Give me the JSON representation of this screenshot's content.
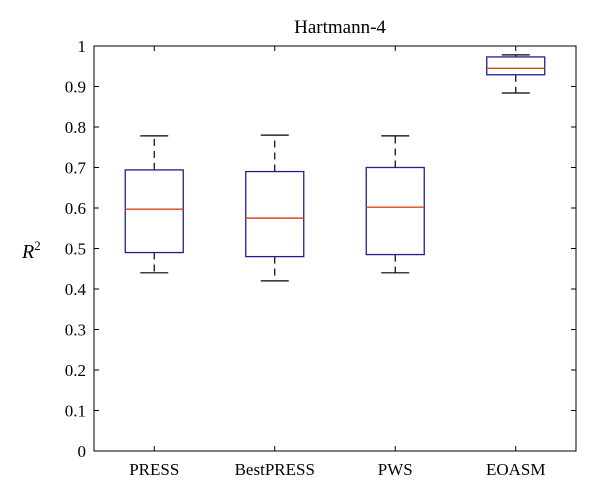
{
  "chart_data": {
    "type": "box",
    "title": "Hartmann-4",
    "ylabel": "R",
    "ylabel_superscript": "2",
    "xlabel": "",
    "ylim": [
      0,
      1
    ],
    "yticks": [
      0,
      0.1,
      0.2,
      0.3,
      0.4,
      0.5,
      0.6,
      0.7,
      0.8,
      0.9,
      1
    ],
    "ytick_labels": [
      "0",
      "0.1",
      "0.2",
      "0.3",
      "0.4",
      "0.5",
      "0.6",
      "0.7",
      "0.8",
      "0.9",
      "1"
    ],
    "categories": [
      "PRESS",
      "BestPRESS",
      "PWS",
      "EOASM"
    ],
    "boxes": [
      {
        "min": 0.44,
        "q1": 0.49,
        "median": 0.597,
        "q3": 0.694,
        "max": 0.778
      },
      {
        "min": 0.42,
        "q1": 0.48,
        "median": 0.575,
        "q3": 0.69,
        "max": 0.78
      },
      {
        "min": 0.44,
        "q1": 0.485,
        "median": 0.602,
        "q3": 0.7,
        "max": 0.778
      },
      {
        "min": 0.884,
        "q1": 0.929,
        "median": 0.945,
        "q3": 0.973,
        "max": 0.978
      }
    ],
    "colors": {
      "box": "#1f1f8f",
      "median": "#d94a1a",
      "whisker": "#000000"
    },
    "grid": false
  }
}
